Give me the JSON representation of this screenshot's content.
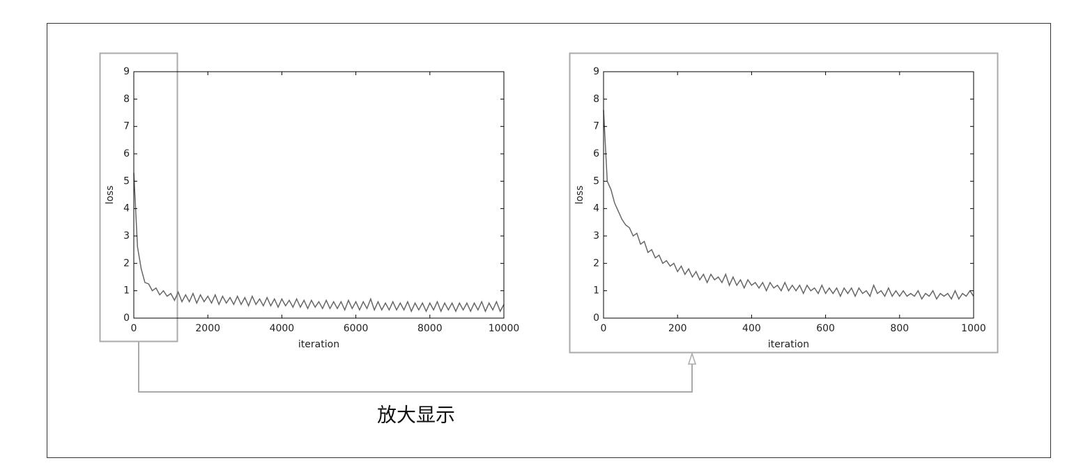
{
  "chart_data": [
    {
      "type": "line",
      "xlabel": "iteration",
      "ylabel": "loss",
      "xlim": [
        0,
        10000
      ],
      "xticks": [
        0,
        2000,
        4000,
        6000,
        8000,
        10000
      ],
      "ylim": [
        0,
        9
      ],
      "yticks": [
        0,
        1,
        2,
        3,
        4,
        5,
        6,
        7,
        8,
        9
      ],
      "x": [
        0,
        100,
        200,
        300,
        400,
        500,
        600,
        700,
        800,
        900,
        1000,
        1100,
        1200,
        1300,
        1400,
        1500,
        1600,
        1700,
        1800,
        1900,
        2000,
        2100,
        2200,
        2300,
        2400,
        2500,
        2600,
        2700,
        2800,
        2900,
        3000,
        3100,
        3200,
        3300,
        3400,
        3500,
        3600,
        3700,
        3800,
        3900,
        4000,
        4100,
        4200,
        4300,
        4400,
        4500,
        4600,
        4700,
        4800,
        4900,
        5000,
        5100,
        5200,
        5300,
        5400,
        5500,
        5600,
        5700,
        5800,
        5900,
        6000,
        6100,
        6200,
        6300,
        6400,
        6500,
        6600,
        6700,
        6800,
        6900,
        7000,
        7100,
        7200,
        7300,
        7400,
        7500,
        7600,
        7700,
        7800,
        7900,
        8000,
        8100,
        8200,
        8300,
        8400,
        8500,
        8600,
        8700,
        8800,
        8900,
        9000,
        9100,
        9200,
        9300,
        9400,
        9500,
        9600,
        9700,
        9800,
        9900,
        10000
      ],
      "series": [
        {
          "color": "#666666",
          "values": [
            5.3,
            2.6,
            1.8,
            1.3,
            1.25,
            1.0,
            1.1,
            0.85,
            1.0,
            0.8,
            0.9,
            0.65,
            0.95,
            0.6,
            0.85,
            0.6,
            0.9,
            0.55,
            0.85,
            0.6,
            0.8,
            0.55,
            0.85,
            0.5,
            0.8,
            0.55,
            0.75,
            0.5,
            0.8,
            0.5,
            0.75,
            0.45,
            0.8,
            0.5,
            0.7,
            0.45,
            0.75,
            0.45,
            0.7,
            0.4,
            0.7,
            0.45,
            0.65,
            0.4,
            0.7,
            0.4,
            0.65,
            0.35,
            0.65,
            0.4,
            0.6,
            0.35,
            0.65,
            0.35,
            0.6,
            0.35,
            0.6,
            0.3,
            0.65,
            0.35,
            0.6,
            0.3,
            0.6,
            0.35,
            0.7,
            0.3,
            0.6,
            0.3,
            0.55,
            0.3,
            0.6,
            0.3,
            0.55,
            0.3,
            0.6,
            0.25,
            0.55,
            0.3,
            0.55,
            0.25,
            0.55,
            0.3,
            0.6,
            0.25,
            0.55,
            0.3,
            0.55,
            0.25,
            0.55,
            0.3,
            0.55,
            0.25,
            0.55,
            0.3,
            0.6,
            0.25,
            0.55,
            0.3,
            0.6,
            0.25,
            0.5
          ]
        }
      ]
    },
    {
      "type": "line",
      "xlabel": "iteration",
      "ylabel": "loss",
      "xlim": [
        0,
        1000
      ],
      "xticks": [
        0,
        200,
        400,
        600,
        800,
        1000
      ],
      "ylim": [
        0,
        9
      ],
      "yticks": [
        0,
        1,
        2,
        3,
        4,
        5,
        6,
        7,
        8,
        9
      ],
      "x": [
        0,
        10,
        20,
        30,
        40,
        50,
        60,
        70,
        80,
        90,
        100,
        110,
        120,
        130,
        140,
        150,
        160,
        170,
        180,
        190,
        200,
        210,
        220,
        230,
        240,
        250,
        260,
        270,
        280,
        290,
        300,
        310,
        320,
        330,
        340,
        350,
        360,
        370,
        380,
        390,
        400,
        410,
        420,
        430,
        440,
        450,
        460,
        470,
        480,
        490,
        500,
        510,
        520,
        530,
        540,
        550,
        560,
        570,
        580,
        590,
        600,
        610,
        620,
        630,
        640,
        650,
        660,
        670,
        680,
        690,
        700,
        710,
        720,
        730,
        740,
        750,
        760,
        770,
        780,
        790,
        800,
        810,
        820,
        830,
        840,
        850,
        860,
        870,
        880,
        890,
        900,
        910,
        920,
        930,
        940,
        950,
        960,
        970,
        980,
        990,
        1000
      ],
      "series": [
        {
          "color": "#666666",
          "values": [
            7.6,
            5.0,
            4.7,
            4.2,
            3.9,
            3.6,
            3.4,
            3.3,
            3.0,
            3.1,
            2.7,
            2.8,
            2.4,
            2.5,
            2.2,
            2.3,
            2.0,
            2.1,
            1.9,
            2.0,
            1.7,
            1.9,
            1.6,
            1.8,
            1.5,
            1.7,
            1.4,
            1.6,
            1.3,
            1.6,
            1.4,
            1.5,
            1.3,
            1.6,
            1.2,
            1.5,
            1.2,
            1.4,
            1.1,
            1.4,
            1.2,
            1.3,
            1.1,
            1.3,
            1.0,
            1.3,
            1.1,
            1.2,
            1.0,
            1.3,
            1.0,
            1.2,
            1.0,
            1.2,
            0.9,
            1.2,
            1.0,
            1.1,
            0.9,
            1.2,
            0.9,
            1.1,
            0.9,
            1.1,
            0.8,
            1.1,
            0.9,
            1.1,
            0.8,
            1.1,
            0.9,
            1.0,
            0.8,
            1.2,
            0.9,
            1.0,
            0.8,
            1.1,
            0.8,
            1.0,
            0.8,
            1.0,
            0.8,
            0.9,
            0.8,
            1.0,
            0.7,
            0.9,
            0.8,
            1.0,
            0.7,
            0.9,
            0.8,
            0.9,
            0.7,
            1.0,
            0.7,
            0.9,
            0.8,
            1.0,
            0.8
          ]
        }
      ]
    }
  ],
  "caption": "放大显示"
}
